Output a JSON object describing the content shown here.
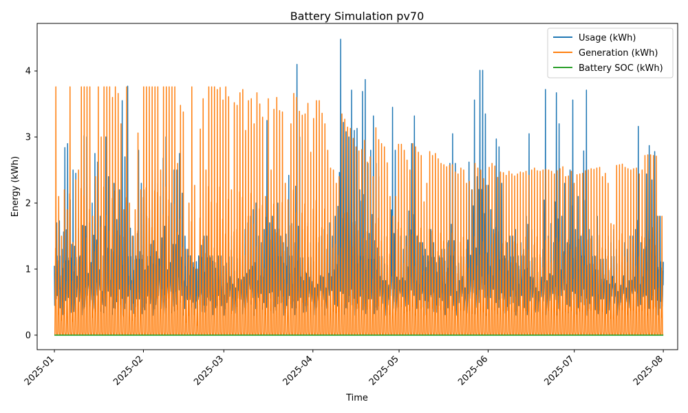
{
  "chart_data": {
    "type": "line",
    "title": "Battery Simulation pv70",
    "xlabel": "Time",
    "ylabel": "Energy (kWh)",
    "x_range": [
      "2024-12-26",
      "2025-08-06"
    ],
    "ylim": [
      -0.22,
      4.72
    ],
    "x_ticks": [
      "2025-01",
      "2025-02",
      "2025-03",
      "2025-04",
      "2025-05",
      "2025-06",
      "2025-07",
      "2025-08"
    ],
    "y_ticks": [
      0,
      1,
      2,
      3,
      4
    ],
    "legend_position": "top-right",
    "grid": false,
    "series": [
      {
        "name": "Usage (kWh)",
        "color": "#1f77b4",
        "sampling": "hourly (approximate envelope: daily minima/maxima)",
        "x_start": "2025-01-01",
        "x_end": "2025-08-01",
        "daily_max": [
          1.7,
          1.73,
          1.3,
          2.84,
          2.9,
          2.05,
          2.5,
          2.45,
          1.62,
          2.18,
          3.02,
          3.0,
          1.7,
          2.0,
          2.75,
          2.62,
          1.8,
          1.2,
          3.0,
          2.4,
          1.3,
          2.3,
          1.75,
          2.2,
          3.55,
          2.7,
          3.77,
          1.62,
          1.5,
          1.2,
          2.8,
          2.3,
          2.2,
          1.8,
          1.9,
          2.5,
          2.6,
          2.3,
          2.1,
          2.68,
          3.0,
          1.8,
          2.0,
          2.5,
          2.5,
          2.75,
          2.15,
          1.5,
          1.3,
          1.2,
          1.1,
          1.0,
          1.2,
          1.36,
          1.5,
          1.5,
          1.2,
          1.2,
          1.1,
          1.0,
          1.2,
          1.0,
          1.1,
          1.4,
          1.5,
          1.4,
          1.3,
          1.5,
          1.2,
          1.6,
          1.7,
          1.8,
          1.9,
          2.0,
          1.5,
          1.4,
          1.6,
          3.25,
          1.7,
          1.8,
          1.6,
          2.0,
          1.5,
          1.4,
          1.53,
          2.42,
          1.69,
          1.4,
          4.1,
          3.0,
          1.6,
          1.5,
          1.7,
          1.4,
          1.2,
          1.3,
          1.4,
          1.5,
          1.6,
          1.3,
          1.7,
          1.5,
          1.8,
          1.95,
          4.48,
          3.22,
          3.08,
          3.0,
          3.71,
          3.1,
          3.13,
          2.2,
          3.69,
          3.87,
          2.6,
          2.8,
          3.32,
          2.6,
          2.4,
          1.6,
          1.5,
          1.5,
          1.2,
          3.45,
          2.8,
          1.6,
          1.5,
          1.3,
          1.5,
          1.88,
          2.9,
          3.32,
          1.5,
          1.4,
          1.4,
          1.3,
          1.2,
          1.6,
          1.4,
          1.1,
          1.2,
          1.3,
          1.3,
          1.4,
          2.6,
          3.05,
          2.6,
          1.2,
          1.5,
          1.4,
          1.3,
          2.62,
          2.2,
          3.56,
          2.4,
          4.01,
          4.01,
          3.35,
          2.27,
          1.9,
          1.6,
          2.97,
          2.85,
          2.3,
          1.2,
          1.4,
          1.5,
          1.5,
          1.6,
          1.2,
          1.4,
          1.3,
          1.8,
          3.05,
          1.6,
          1.4,
          1.3,
          1.2,
          1.3,
          3.72,
          1.5,
          1.69,
          1.4,
          3.67,
          3.2,
          1.8,
          2.3,
          1.4,
          2.5,
          3.56,
          1.6,
          2.1,
          1.5,
          2.79,
          3.71,
          1.6,
          1.5,
          1.2,
          1.8,
          1.1,
          1.0,
          1.3,
          1.5,
          1.4,
          1.6,
          1.3,
          1.2,
          1.1,
          1.4,
          1.3,
          1.5,
          1.5,
          1.6,
          3.16,
          1.4,
          1.3,
          2.44,
          2.87,
          2.35,
          2.78,
          1.8,
          1.8,
          0.97
        ],
        "daily_min": 0.45
      },
      {
        "name": "Generation (kWh)",
        "color": "#ff7f0e",
        "sampling": "hourly (approximate envelope: daily peaks, zero at night)",
        "x_start": "2025-01-01",
        "x_end": "2025-08-01",
        "daily_max": [
          3.76,
          2.1,
          1.5,
          2.2,
          1.9,
          3.76,
          1.4,
          2.35,
          2.5,
          3.76,
          3.76,
          3.76,
          3.76,
          1.8,
          2.4,
          3.76,
          3.0,
          3.76,
          3.76,
          3.76,
          3.6,
          3.76,
          3.66,
          3.2,
          1.9,
          3.76,
          2.0,
          1.5,
          1.9,
          3.06,
          2.2,
          3.76,
          3.76,
          3.76,
          3.76,
          3.76,
          3.76,
          2.5,
          3.76,
          3.76,
          3.76,
          3.76,
          3.76,
          2.6,
          3.48,
          3.38,
          1.3,
          2.0,
          3.76,
          2.27,
          1.0,
          3.12,
          3.58,
          2.5,
          3.76,
          3.76,
          3.76,
          3.72,
          3.75,
          3.56,
          3.76,
          3.61,
          2.2,
          3.52,
          3.48,
          3.67,
          3.72,
          3.1,
          3.55,
          3.58,
          3.2,
          3.67,
          3.5,
          3.3,
          2.1,
          3.58,
          2.5,
          3.42,
          3.6,
          3.4,
          3.38,
          2.3,
          2.05,
          3.2,
          3.66,
          3.6,
          3.39,
          3.33,
          3.35,
          3.51,
          2.77,
          3.28,
          3.55,
          3.55,
          3.36,
          3.2,
          2.8,
          2.53,
          2.5,
          2.3,
          2.4,
          3.35,
          3.27,
          3.15,
          3.13,
          2.98,
          2.85,
          2.79,
          2.81,
          2.95,
          2.62,
          2.7,
          2.4,
          3.14,
          2.96,
          2.9,
          2.85,
          2.61,
          2.1,
          1.8,
          2.1,
          2.89,
          2.89,
          2.8,
          2.65,
          2.5,
          2.9,
          2.85,
          2.77,
          2.72,
          2.02,
          2.3,
          2.78,
          2.72,
          2.75,
          2.67,
          2.6,
          2.58,
          2.55,
          2.57,
          2.58,
          2.47,
          2.44,
          2.53,
          2.5,
          2.3,
          2.33,
          2.2,
          2.6,
          2.53,
          2.5,
          2.37,
          2.27,
          2.54,
          2.6,
          2.56,
          2.39,
          2.47,
          2.46,
          2.42,
          2.48,
          2.44,
          2.41,
          2.44,
          2.47,
          2.46,
          2.48,
          2.42,
          2.5,
          2.53,
          2.49,
          2.48,
          2.5,
          2.51,
          2.5,
          2.48,
          2.44,
          2.49,
          2.52,
          2.55,
          2.4,
          2.41,
          2.48,
          2.3,
          2.43,
          2.44,
          2.45,
          2.49,
          2.5,
          2.52,
          2.51,
          2.53,
          2.54,
          2.4,
          2.45,
          2.3,
          1.69,
          1.67,
          2.57,
          2.58,
          2.59,
          2.54,
          2.52,
          2.5,
          2.52,
          2.53,
          2.44,
          2.5,
          2.72,
          2.73,
          2.73,
          2.72,
          2.71,
          1.8,
          1.8
        ],
        "daily_min": 0.0
      },
      {
        "name": "Battery SOC (kWh)",
        "color": "#2ca02c",
        "x_start": "2025-01-01",
        "x_end": "2025-08-01",
        "values_constant": 0.0
      }
    ]
  }
}
